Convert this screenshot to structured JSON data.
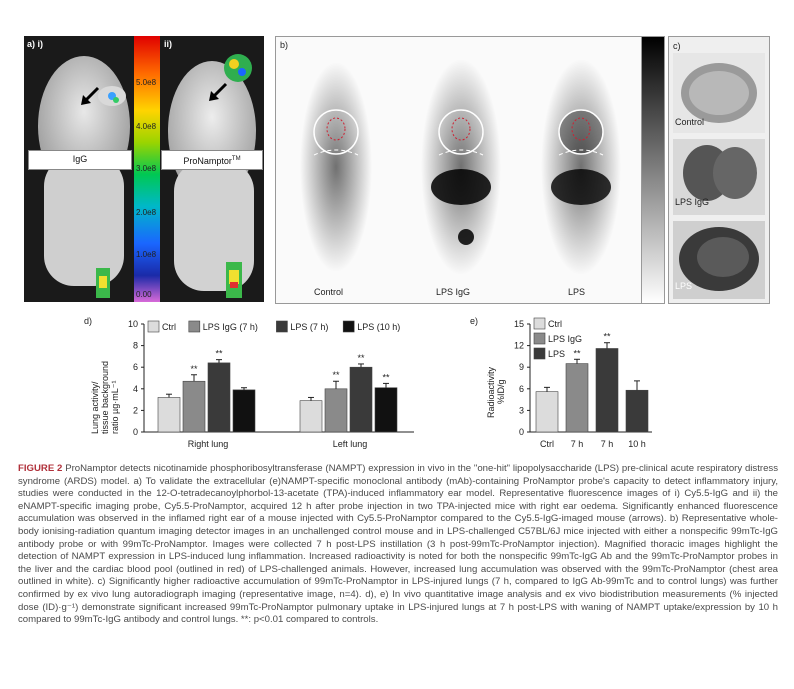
{
  "panel_a": {
    "label_i": "a) i)",
    "label_ii": "ii)",
    "probe_i": "IgG",
    "probe_ii": "ProNamptor",
    "probe_ii_sup": "TM",
    "scale_ticks": [
      "5.0e8",
      "4.0e8",
      "3.0e8",
      "2.0e8",
      "1.0e8",
      "0.00"
    ],
    "arrow_icon": "arrow-icon"
  },
  "panel_b": {
    "label": "b)",
    "mouse_labels": [
      "Control",
      "LPS IgG",
      "LPS"
    ]
  },
  "panel_c": {
    "label": "c)",
    "lung_labels": [
      "Control",
      "LPS IgG",
      "LPS"
    ]
  },
  "chart_data": [
    {
      "panel": "d)",
      "type": "bar",
      "ylabel": "Lung activity/ tissue background ratio µg·mL⁻¹",
      "ylim": [
        0,
        10
      ],
      "yticks": [
        "0",
        "2",
        "4",
        "6",
        "8",
        "10"
      ],
      "categories": [
        "Right lung",
        "Left lung"
      ],
      "series": [
        {
          "name": "Ctrl",
          "values": [
            3.2,
            2.9
          ],
          "errors": [
            0.3,
            0.3
          ],
          "sig": [
            "",
            ""
          ],
          "color": "#dcdcdc"
        },
        {
          "name": "LPS IgG (7 h)",
          "values": [
            4.7,
            4.0
          ],
          "errors": [
            0.6,
            0.7
          ],
          "sig": [
            "**",
            "**"
          ],
          "color": "#8a8a8a"
        },
        {
          "name": "LPS (7 h)",
          "values": [
            6.4,
            6.0
          ],
          "errors": [
            0.3,
            0.3
          ],
          "sig": [
            "**",
            "**"
          ],
          "color": "#3a3a3a"
        },
        {
          "name": "LPS (10 h)",
          "values": [
            3.9,
            4.1
          ],
          "errors": [
            0.2,
            0.4
          ],
          "sig": [
            "",
            "**"
          ],
          "color": "#111111"
        }
      ]
    },
    {
      "panel": "e)",
      "type": "bar",
      "ylabel": "Radioactivity %ID/g",
      "ylim": [
        0,
        15
      ],
      "yticks": [
        "0",
        "3",
        "6",
        "9",
        "12",
        "15"
      ],
      "categories": [
        "Ctrl",
        "7 h",
        "7 h",
        "10 h"
      ],
      "values": [
        5.6,
        9.5,
        11.6,
        5.8
      ],
      "errors": [
        0.6,
        0.6,
        0.8,
        1.3
      ],
      "sig": [
        "",
        "**",
        "**",
        ""
      ],
      "colors": [
        "#dcdcdc",
        "#8a8a8a",
        "#3a3a3a",
        "#3a3a3a"
      ],
      "legend": [
        {
          "name": "Ctrl",
          "color": "#dcdcdc"
        },
        {
          "name": "LPS IgG",
          "color": "#8a8a8a"
        },
        {
          "name": "LPS",
          "color": "#3a3a3a"
        }
      ]
    }
  ],
  "caption": {
    "head": "FIGURE 2",
    "text": "ProNamptor detects nicotinamide phosphoribosyltransferase (NAMPT) expression in vivo in the \"one-hit\" lipopolysaccharide (LPS) pre-clinical acute respiratory distress syndrome (ARDS) model. a) To validate the extracellular (e)NAMPT-specific monoclonal antibody (mAb)-containing ProNamptor probe's capacity to detect inflammatory injury, studies were conducted in the 12-O-tetradecanoylphorbol-13-acetate (TPA)-induced inflammatory ear model. Representative fluorescence images of i) Cy5.5-IgG and ii) the eNAMPT-specific imaging probe, Cy5.5-ProNamptor, acquired 12 h after probe injection in two TPA-injected mice with right ear oedema. Significantly enhanced fluorescence accumulation was observed in the inflamed right ear of a mouse injected with Cy5.5-ProNamptor compared to the Cy5.5-IgG-imaged mouse (arrows). b) Representative whole-body ionising-radiation quantum imaging detector images in an unchallenged control mouse and in LPS-challenged C57BL/6J mice injected with either a nonspecific 99mTc-IgG antibody probe or with 99mTc-ProNamptor. Images were collected 7 h post-LPS instillation (3 h post-99mTc-ProNamptor injection). Magnified thoracic images highlight the detection of NAMPT expression in LPS-induced lung inflammation. Increased radioactivity is noted for both the nonspecific 99mTc-IgG Ab and the 99mTc-ProNamptor probes in the liver and the cardiac blood pool (outlined in red) of LPS-challenged animals. However, increased lung accumulation was observed with the 99mTc-ProNamptor (chest area outlined in white). c) Significantly higher radioactive accumulation of 99mTc-ProNamptor in LPS-injured lungs (7 h, compared to IgG Ab-99mTc and to control lungs) was further confirmed by ex vivo lung autoradiograph imaging (representative image, n=4). d), e) In vivo quantitative image analysis and ex vivo biodistribution measurements (% injected dose (ID)·g⁻¹) demonstrate significant increased 99mTc-ProNamptor pulmonary uptake in LPS-injured lungs at 7 h post-LPS with waning of NAMPT uptake/expression by 10 h compared to 99mTc-IgG antibody and control lungs. **: p<0.01 compared to controls."
  }
}
